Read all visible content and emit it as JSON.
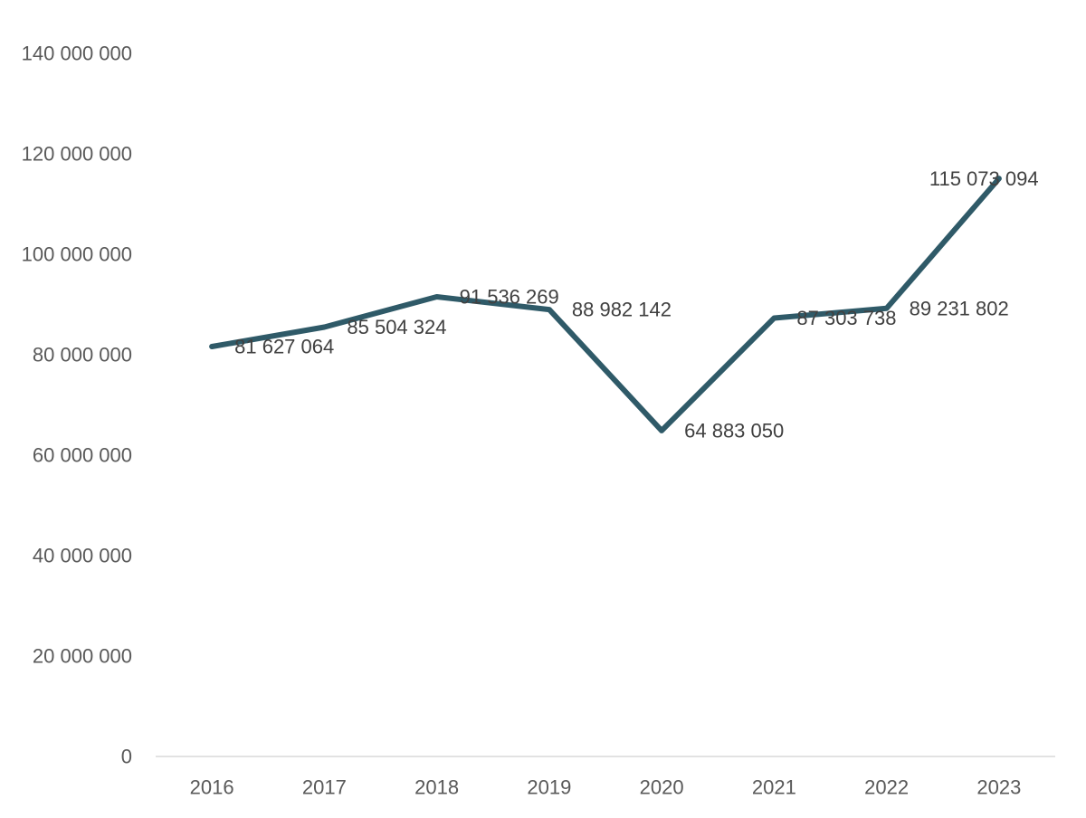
{
  "chart_data": {
    "type": "line",
    "title": "",
    "xlabel": "",
    "ylabel": "",
    "categories": [
      "2016",
      "2017",
      "2018",
      "2019",
      "2020",
      "2021",
      "2022",
      "2023"
    ],
    "series": [
      {
        "values": [
          81627064,
          85504324,
          91536269,
          88982142,
          64883050,
          87303738,
          89231802,
          115073094
        ],
        "labels": [
          "81 627 064",
          "85 504 324",
          "91 536 269",
          "88 982 142",
          "64 883 050",
          "87 303 738",
          "89 231 802",
          "115 073 094"
        ],
        "color": "#2f5a68"
      }
    ],
    "ylim": [
      0,
      140000000
    ],
    "yticks": [
      0,
      20000000,
      40000000,
      60000000,
      80000000,
      100000000,
      120000000,
      140000000
    ],
    "ytick_labels": [
      "0",
      "20 000 000",
      "40 000 000",
      "60 000 000",
      "80 000 000",
      "100 000 000",
      "120 000 000",
      "140 000 000"
    ],
    "grid": false,
    "legend": "none",
    "axis_color": "#d9d9d9",
    "tick_label_color": "#595959",
    "data_label_color": "#404040"
  }
}
